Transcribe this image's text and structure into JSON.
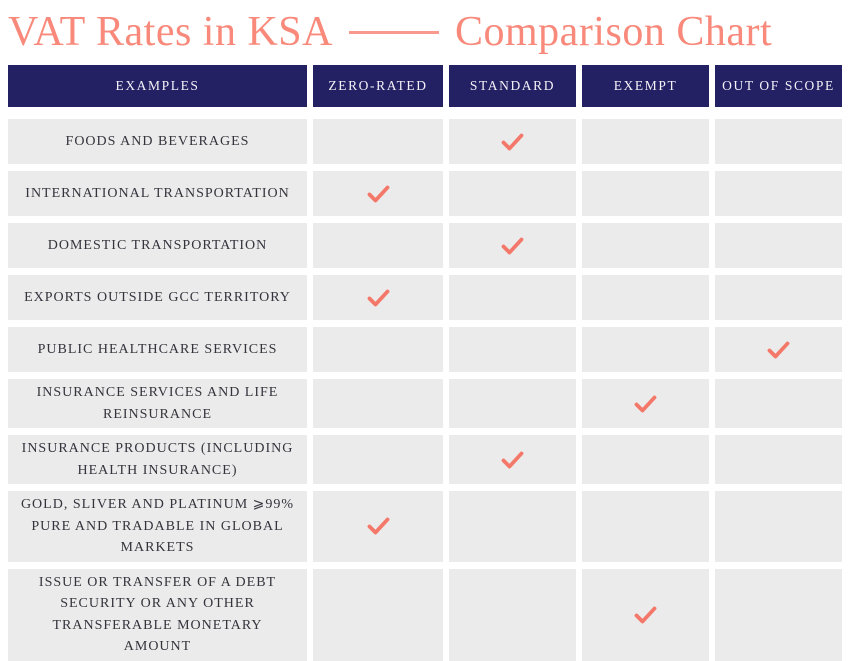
{
  "header": {
    "title_left": "VAT Rates in KSA",
    "title_right": "Comparison Chart"
  },
  "colors": {
    "title_coral": "#f8897b",
    "dash_coral": "#f9998d",
    "header_navy": "#232064",
    "header_text": "#f4f2f7",
    "cell_gray": "#ebebeb",
    "row_text": "#35333c",
    "check_coral": "#f4786a"
  },
  "icons": {
    "check": "check-icon"
  },
  "chart_data": {
    "type": "table",
    "title": "VAT Rates in KSA —— Comparison Chart",
    "columns": [
      "EXAMPLES",
      "ZERO-RATED",
      "STANDARD",
      "EXEMPT",
      "OUT OF SCOPE"
    ],
    "rows": [
      {
        "example": "FOODS AND BEVERAGES",
        "rate": "STANDARD"
      },
      {
        "example": "INTERNATIONAL TRANSPORTATION",
        "rate": "ZERO-RATED"
      },
      {
        "example": "DOMESTIC TRANSPORTATION",
        "rate": "STANDARD"
      },
      {
        "example": "EXPORTS OUTSIDE GCC TERRITORY",
        "rate": "ZERO-RATED"
      },
      {
        "example": "PUBLIC HEALTHCARE SERVICES",
        "rate": "OUT OF SCOPE"
      },
      {
        "example": "INSURANCE SERVICES AND LIFE REINSURANCE",
        "rate": "EXEMPT"
      },
      {
        "example": "INSURANCE PRODUCTS (INCLUDING HEALTH INSURANCE)",
        "rate": "STANDARD"
      },
      {
        "example": "GOLD, SLIVER AND PLATINUM ⩾99% PURE AND TRADABLE IN GLOBAL MARKETS",
        "rate": "ZERO-RATED"
      },
      {
        "example": "ISSUE OR TRANSFER OF A DEBT SECURITY OR ANY OTHER TRANSFERABLE MONETARY AMOUNT",
        "rate": "EXEMPT"
      }
    ]
  }
}
